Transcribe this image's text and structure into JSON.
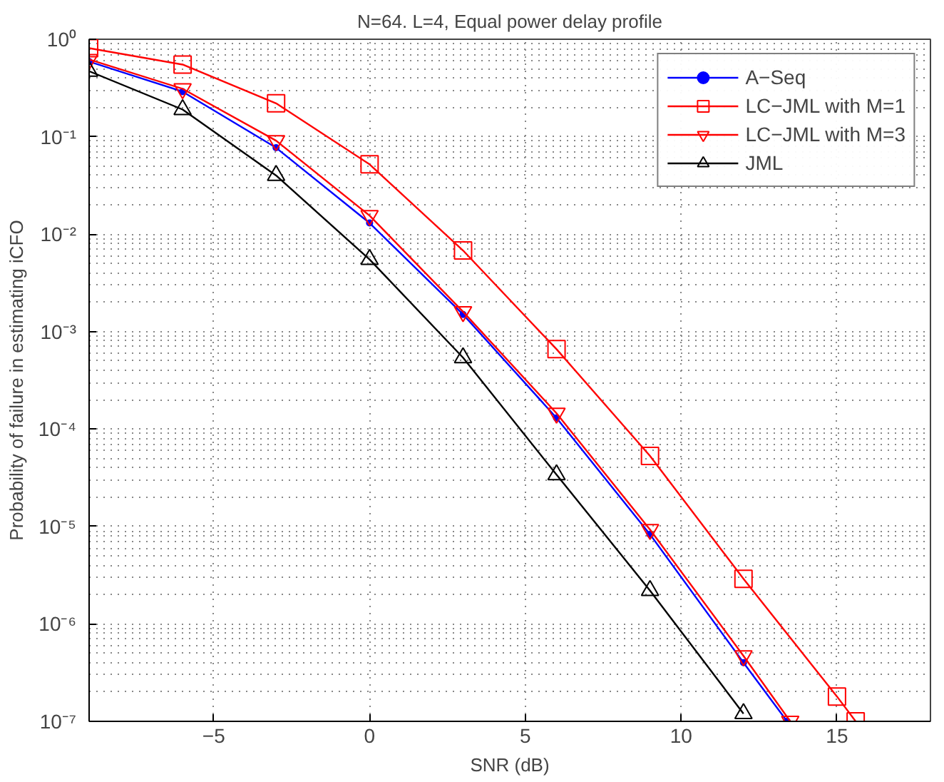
{
  "chart_data": {
    "type": "line",
    "title": "N=64. L=4, Equal power delay profile",
    "xlabel": "SNR (dB)",
    "ylabel": "Probability of failure in estimating iCFO",
    "log": "y",
    "grid": true,
    "legend": "top right",
    "line_style": "solid",
    "xlim": [
      -9,
      18
    ],
    "xticks": [
      -5,
      0,
      5,
      10,
      15
    ],
    "ylim": [
      1e-07,
      1
    ],
    "yticks": [
      {
        "value": 1e-07,
        "label": "10⁻⁷"
      },
      {
        "value": 1e-06,
        "label": "10⁻⁶"
      },
      {
        "value": 1e-05,
        "label": "10⁻⁵"
      },
      {
        "value": 0.0001,
        "label": "10⁻⁴"
      },
      {
        "value": 0.001,
        "label": "10⁻³"
      },
      {
        "value": 0.01,
        "label": "10⁻²"
      },
      {
        "value": 0.1,
        "label": "10⁻¹"
      },
      {
        "value": 1,
        "label": "10⁰"
      }
    ],
    "series": [
      {
        "name": "A−Seq",
        "color": "#0000ff",
        "marker": "dot",
        "x": [
          -9,
          -6,
          -3,
          0,
          3,
          6,
          9,
          12,
          13.4
        ],
        "values": [
          0.59,
          0.29,
          0.077,
          0.013,
          0.0015,
          0.00013,
          8.3e-06,
          4e-07,
          1e-07
        ]
      },
      {
        "name": "LC−JML with M=1",
        "color": "#ff0000",
        "marker": "square",
        "x": [
          -9,
          -6,
          -3,
          0,
          3,
          6,
          9,
          12,
          15,
          15.6
        ],
        "values": [
          0.81,
          0.55,
          0.22,
          0.052,
          0.0068,
          0.00066,
          5.3e-05,
          2.9e-06,
          1.8e-07,
          1e-07
        ]
      },
      {
        "name": "LC−JML with M=3",
        "color": "#ff0000",
        "marker": "triangle_down",
        "x": [
          -9,
          -6,
          -3,
          0,
          3,
          6,
          9,
          12,
          13.5
        ],
        "values": [
          0.62,
          0.31,
          0.091,
          0.0155,
          0.0016,
          0.000145,
          9.3e-06,
          4.7e-07,
          1e-07
        ]
      },
      {
        "name": "JML",
        "color": "#000000",
        "marker": "triangle",
        "x": [
          -9,
          -6,
          -3,
          0,
          3,
          6,
          9,
          12
        ],
        "values": [
          0.47,
          0.19,
          0.04,
          0.0055,
          0.00054,
          3.4e-05,
          2.2e-06,
          1.2e-07
        ]
      }
    ]
  }
}
